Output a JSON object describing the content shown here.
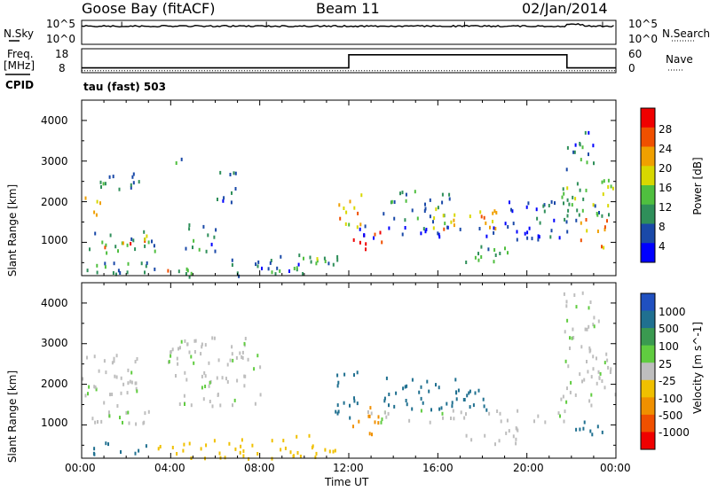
{
  "header": {
    "station": "Goose Bay (fitACF)",
    "beam": "Beam 11",
    "date": "02/Jan/2014"
  },
  "top_panels": {
    "nsky_label": "N.Sky",
    "nsearch_label": "N.Search",
    "nsky_ticks": [
      "10^5",
      "10^0"
    ],
    "nsearch_ticks": [
      "10^5",
      "10^0"
    ],
    "freq_label_1": "Freq.",
    "freq_label_2": "[MHz]",
    "freq_ticks": [
      "18",
      "8"
    ],
    "nave_label": "Nave",
    "nave_ticks": [
      "60",
      "0"
    ],
    "cpid_label": "CPID",
    "cpid_value": "tau (fast) 503"
  },
  "axes": {
    "xlabel": "Time UT",
    "x_ticks": [
      "00:00",
      "04:00",
      "08:00",
      "12:00",
      "16:00",
      "20:00",
      "00:00"
    ],
    "ylabel": "Slant Range [km]",
    "y_ticks": [
      "4000",
      "3000",
      "2000",
      "1000"
    ]
  },
  "power_bar": {
    "label": "Power [dB]",
    "ticks": [
      "28",
      "24",
      "20",
      "16",
      "12",
      "8",
      "4"
    ],
    "colors": [
      "#0000ff",
      "#1a49a8",
      "#2f8f5a",
      "#4fbf3f",
      "#d8d800",
      "#f0a000",
      "#f05000",
      "#f00000"
    ]
  },
  "velocity_bar": {
    "label": "Velocity [m s^-1]",
    "ticks": [
      "1000",
      "500",
      "100",
      "25",
      "-25",
      "-100",
      "-500",
      "-1000"
    ],
    "colors": [
      "#2050c0",
      "#207090",
      "#3a9a50",
      "#60cc40",
      "#bebebe",
      "#f0c000",
      "#f09000",
      "#f05000",
      "#f00000"
    ]
  },
  "chart_data": {
    "type": "heatmap",
    "x_range_hours": [
      0,
      24
    ],
    "y_range_km": [
      180,
      4500
    ],
    "freq_series": {
      "name": "Freq.",
      "segments": [
        {
          "start_h": 0,
          "end_h": 12,
          "value_mhz": 10
        },
        {
          "start_h": 12,
          "end_h": 21.8,
          "value_mhz": 15.5
        },
        {
          "start_h": 21.8,
          "end_h": 24,
          "value_mhz": 10
        }
      ]
    },
    "nave_series": {
      "name": "Nave",
      "value": 5
    },
    "nsky_level_log": 3.8,
    "power_regions": [
      {
        "t0": 0.0,
        "t1": 0.8,
        "r0": 1600,
        "r1": 2200,
        "db": 20
      },
      {
        "t0": 0.3,
        "t1": 2.6,
        "r0": 2300,
        "r1": 2800,
        "db": 8
      },
      {
        "t0": 0.3,
        "t1": 3.4,
        "r0": 700,
        "r1": 1300,
        "db": 12
      },
      {
        "t0": 1.0,
        "t1": 2.4,
        "r0": 850,
        "r1": 1050,
        "db": 24
      },
      {
        "t0": 0.2,
        "t1": 4.0,
        "r0": 250,
        "r1": 650,
        "db": 8
      },
      {
        "t0": 2.6,
        "t1": 3.4,
        "r0": 900,
        "r1": 1200,
        "db": 20
      },
      {
        "t0": 3.5,
        "t1": 5.2,
        "r0": 180,
        "r1": 500,
        "db": 12
      },
      {
        "t0": 3.6,
        "t1": 4.3,
        "r0": 280,
        "r1": 420,
        "db": 28
      },
      {
        "t0": 3.8,
        "t1": 4.5,
        "r0": 2900,
        "r1": 3200,
        "db": 8
      },
      {
        "t0": 4.3,
        "t1": 6.0,
        "r0": 800,
        "r1": 1500,
        "db": 8
      },
      {
        "t0": 5.8,
        "t1": 7.0,
        "r0": 2500,
        "r1": 2800,
        "db": 8
      },
      {
        "t0": 6.0,
        "t1": 7.4,
        "r0": 2000,
        "r1": 2400,
        "db": 8
      },
      {
        "t0": 6.5,
        "t1": 8.5,
        "r0": 180,
        "r1": 700,
        "db": 8
      },
      {
        "t0": 8.5,
        "t1": 11.5,
        "r0": 250,
        "r1": 800,
        "db": 8
      },
      {
        "t0": 9.5,
        "t1": 11.0,
        "r0": 350,
        "r1": 700,
        "db": 16
      },
      {
        "t0": 11.5,
        "t1": 12.6,
        "r0": 1400,
        "r1": 2400,
        "db": 20
      },
      {
        "t0": 12.0,
        "t1": 13.5,
        "r0": 800,
        "r1": 1300,
        "db": 28
      },
      {
        "t0": 12.4,
        "t1": 22.0,
        "r0": 1100,
        "r1": 1450,
        "db": 4
      },
      {
        "t0": 13.5,
        "t1": 16.5,
        "r0": 1500,
        "r1": 2300,
        "db": 8
      },
      {
        "t0": 15.5,
        "t1": 18.8,
        "r0": 1350,
        "r1": 1900,
        "db": 20
      },
      {
        "t0": 17.2,
        "t1": 19.8,
        "r0": 550,
        "r1": 1000,
        "db": 12
      },
      {
        "t0": 19.0,
        "t1": 22.0,
        "r0": 1500,
        "r1": 2100,
        "db": 8
      },
      {
        "t0": 21.5,
        "t1": 24.0,
        "r0": 1500,
        "r1": 2600,
        "db": 12
      },
      {
        "t0": 22.3,
        "t1": 23.6,
        "r0": 900,
        "r1": 1600,
        "db": 24
      },
      {
        "t0": 21.6,
        "t1": 23.0,
        "r0": 2800,
        "r1": 3800,
        "db": 8
      },
      {
        "t0": 23.3,
        "t1": 24.0,
        "r0": 2200,
        "r1": 2700,
        "db": 12
      }
    ],
    "velocity_regions": [
      {
        "t0": 0.0,
        "t1": 2.6,
        "r0": 1500,
        "r1": 2800,
        "v": 0
      },
      {
        "t0": 0.3,
        "t1": 3.4,
        "r0": 900,
        "r1": 1400,
        "v": 0
      },
      {
        "t0": 0.3,
        "t1": 3.0,
        "r0": 300,
        "r1": 600,
        "v": 150
      },
      {
        "t0": 3.4,
        "t1": 8.0,
        "r0": 200,
        "r1": 700,
        "v": -300
      },
      {
        "t0": 3.8,
        "t1": 8.0,
        "r0": 1500,
        "r1": 3200,
        "v": 0
      },
      {
        "t0": 8.5,
        "t1": 11.5,
        "r0": 200,
        "r1": 800,
        "v": -200
      },
      {
        "t0": 11.3,
        "t1": 12.5,
        "r0": 1200,
        "r1": 2400,
        "v": 150
      },
      {
        "t0": 12.0,
        "t1": 13.3,
        "r0": 800,
        "r1": 1500,
        "v": -700
      },
      {
        "t0": 12.4,
        "t1": 22.0,
        "r0": 1100,
        "r1": 1400,
        "v": 0
      },
      {
        "t0": 13.5,
        "t1": 17.0,
        "r0": 1400,
        "r1": 2200,
        "v": 150
      },
      {
        "t0": 16.0,
        "t1": 18.5,
        "r0": 1400,
        "r1": 1900,
        "v": 400
      },
      {
        "t0": 17.2,
        "t1": 19.8,
        "r0": 550,
        "r1": 1000,
        "v": -60
      },
      {
        "t0": 21.5,
        "t1": 24.0,
        "r0": 1500,
        "r1": 2800,
        "v": 0
      },
      {
        "t0": 22.0,
        "t1": 23.5,
        "r0": 800,
        "r1": 1300,
        "v": 150
      },
      {
        "t0": 21.6,
        "t1": 23.2,
        "r0": 2800,
        "r1": 4300,
        "v": 0
      }
    ]
  }
}
